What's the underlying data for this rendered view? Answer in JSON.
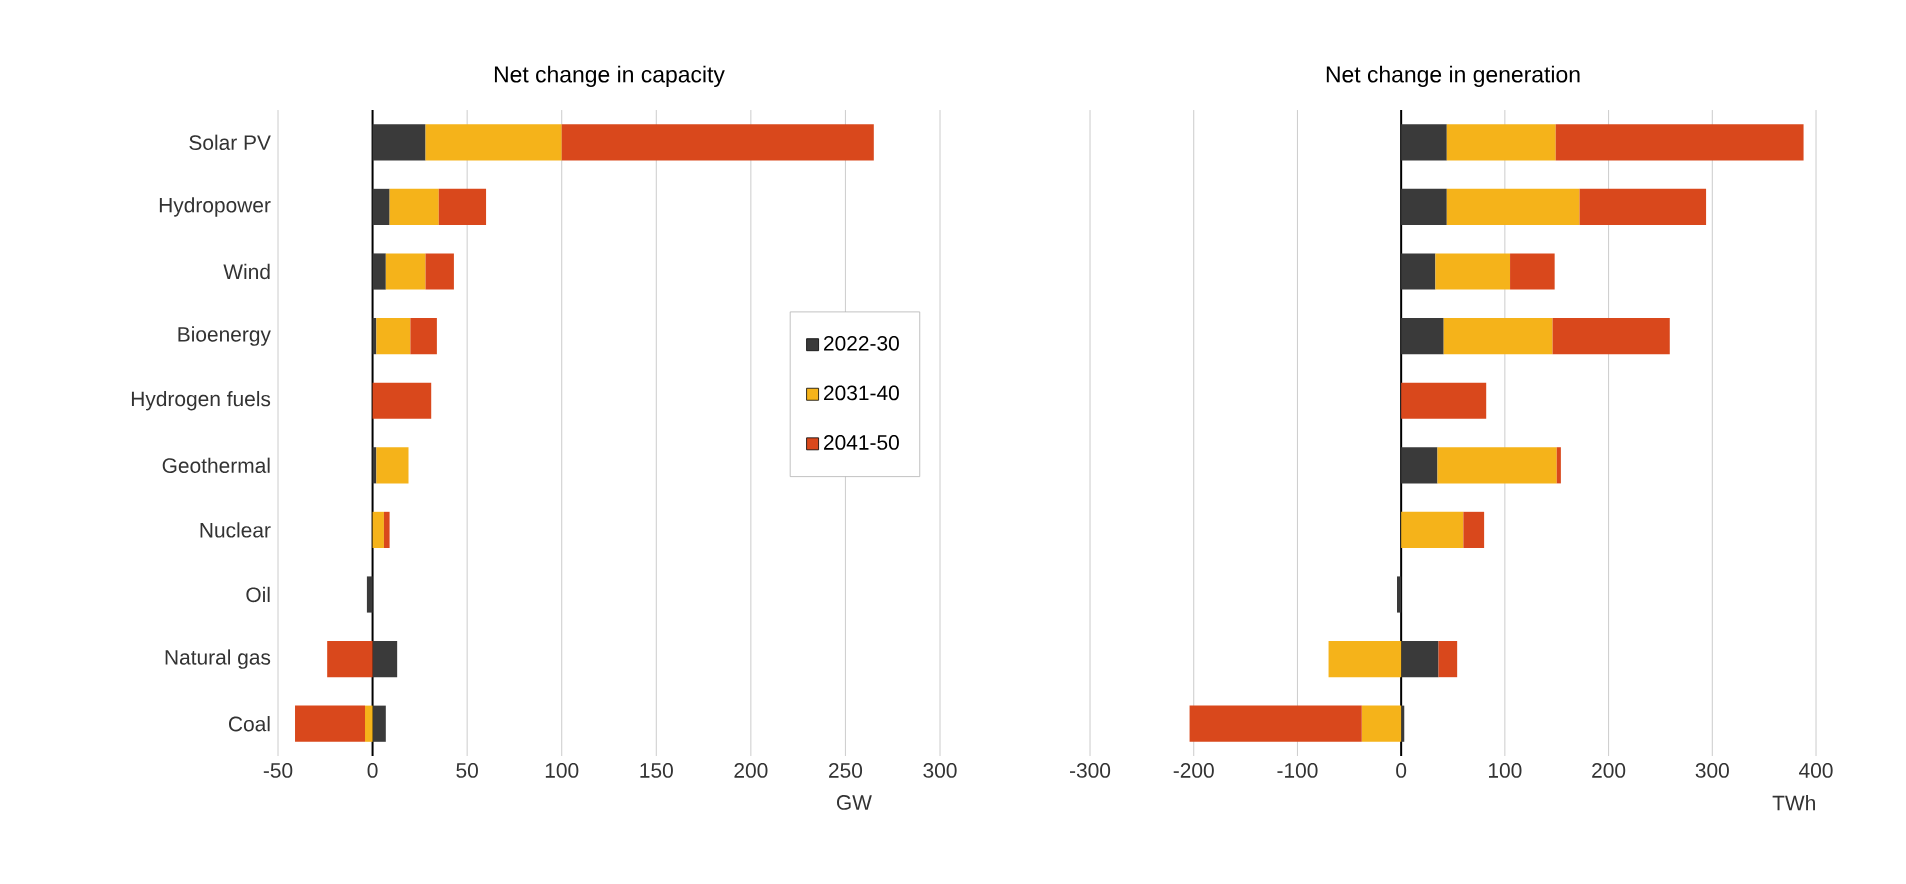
{
  "chart_data": [
    {
      "type": "bar",
      "orientation": "horizontal",
      "stacked": true,
      "title": "Net change in capacity",
      "xlabel": "GW",
      "categories": [
        "Solar PV",
        "Hydropower",
        "Wind",
        "Bioenergy",
        "Hydrogen fuels",
        "Geothermal",
        "Nuclear",
        "Oil",
        "Natural gas",
        "Coal"
      ],
      "series": [
        {
          "name": "2022-30",
          "color": "#3a3a3a",
          "values": [
            28,
            9,
            7,
            2,
            0,
            2,
            0,
            -3,
            13,
            7
          ]
        },
        {
          "name": "2031-40",
          "color": "#f5b31a",
          "values": [
            72,
            26,
            21,
            18,
            0,
            17,
            6,
            0,
            0,
            -4
          ]
        },
        {
          "name": "2041-50",
          "color": "#d9481c",
          "values": [
            165,
            25,
            15,
            14,
            31,
            0,
            3,
            0,
            -24,
            -37
          ]
        }
      ],
      "xlim": [
        -50,
        300
      ],
      "xticks": [
        -50,
        0,
        50,
        100,
        150,
        200,
        250,
        300
      ],
      "grid": "x",
      "legend": "right"
    },
    {
      "type": "bar",
      "orientation": "horizontal",
      "stacked": true,
      "title": "Net change in generation",
      "xlabel": "TWh",
      "categories": [
        null,
        null,
        null,
        null,
        null,
        null,
        null,
        null,
        null,
        null
      ],
      "series": [
        {
          "color": "#3a3a3a",
          "values": [
            44,
            44,
            33,
            41,
            0,
            35,
            0,
            -4,
            36,
            3
          ]
        },
        {
          "color": "#f5b31a",
          "values": [
            105,
            128,
            72,
            105,
            0,
            115,
            60,
            0,
            -70,
            -38
          ]
        },
        {
          "color": "#d9481c",
          "values": [
            239,
            122,
            43,
            113,
            82,
            4,
            20,
            0,
            18,
            -166
          ]
        }
      ],
      "xlim": [
        -300,
        400
      ],
      "xticks": [
        -300,
        -200,
        -100,
        0,
        100,
        200,
        300,
        400
      ],
      "grid": "x",
      "tick_labels": "x"
    }
  ]
}
